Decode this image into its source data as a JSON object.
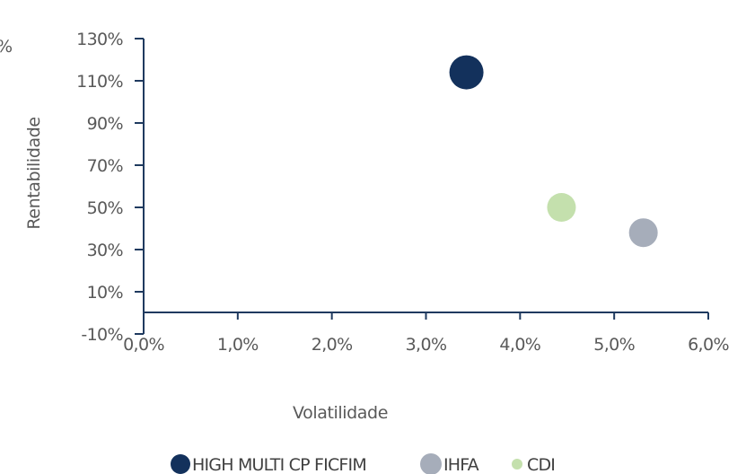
{
  "chart_data": {
    "type": "scatter",
    "title": "",
    "xlabel": "Volatilidade",
    "ylabel": "Rentabilidade",
    "xlim": [
      0,
      6.0
    ],
    "ylim": [
      -10,
      130
    ],
    "x_ticks": [
      "0,0%",
      "1,0%",
      "2,0%",
      "3,0%",
      "4,0%",
      "5,0%",
      "6,0%"
    ],
    "y_ticks": [
      "-10%",
      "10%",
      "30%",
      "50%",
      "70%",
      "90%",
      "110%",
      "130%"
    ],
    "grid": false,
    "legend_position": "bottom",
    "clipped_edge_label": "%",
    "series": [
      {
        "name": "HIGH MULTI CP FICFIM",
        "color": "#13315c",
        "x": 3.43,
        "y": 114,
        "marker": "large"
      },
      {
        "name": "IHFA",
        "color": "#a6adba",
        "x": 5.31,
        "y": 38,
        "marker": "medium"
      },
      {
        "name": "CDI",
        "color": "#c4e0ad",
        "x": 4.44,
        "y": 50,
        "marker": "medium"
      }
    ]
  }
}
